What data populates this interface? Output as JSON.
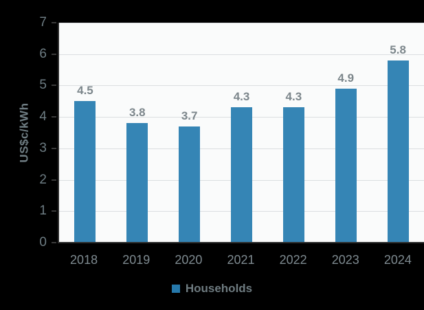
{
  "chart_data": {
    "type": "bar",
    "title": "",
    "categories": [
      "2018",
      "2019",
      "2020",
      "2021",
      "2022",
      "2023",
      "2024"
    ],
    "series": [
      {
        "name": "Households",
        "values": [
          4.5,
          3.8,
          3.7,
          4.3,
          4.3,
          4.9,
          5.8
        ]
      }
    ],
    "value_labels": [
      "4.5",
      "3.8",
      "3.7",
      "4.3",
      "4.3",
      "4.9",
      "5.8"
    ],
    "xlabel": "",
    "ylabel": "US$c/kWh",
    "ylim": [
      0,
      7
    ],
    "ytick_step": 1,
    "ytick_labels": [
      "0",
      "1",
      "2",
      "3",
      "4",
      "5",
      "6",
      "7"
    ],
    "grid": true,
    "legend_position": "bottom",
    "colors": {
      "bar": "#3585b5",
      "legend_marker": "#2679ab",
      "page_background": "#000000",
      "plot_background": "#fafbfb",
      "gridline": "#dbdee1",
      "axis": "#2e2e2e",
      "value_label_text": "#7c868b",
      "y_tick_text": "#6e7d84",
      "x_tick_text": "#7e8a90",
      "y_axis_title_text": "#6f7d83",
      "legend_text": "#6e7b80"
    }
  }
}
